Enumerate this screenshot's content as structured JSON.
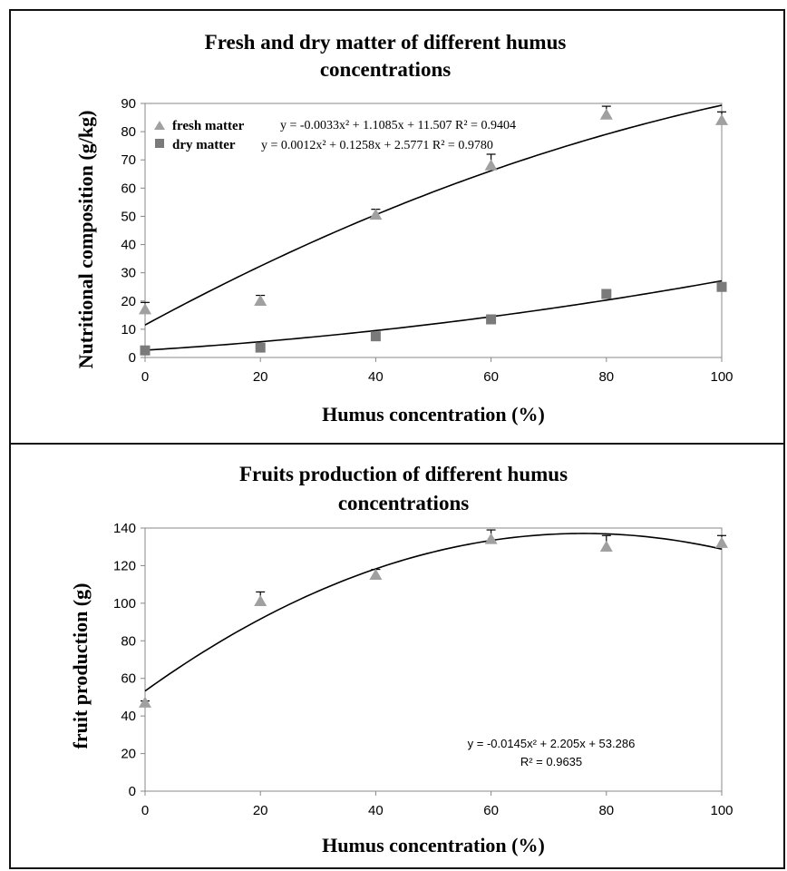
{
  "charts": [
    {
      "type": "scatter",
      "title_lines": [
        "Fresh and dry matter of different humus",
        "concentrations"
      ],
      "xlabel": "Humus concentration (%)",
      "ylabel": "Nutritional composition  (g/kg)",
      "xlim": [
        0,
        100
      ],
      "ylim": [
        0,
        90
      ],
      "xticks": [
        "0",
        "20",
        "40",
        "60",
        "80",
        "100"
      ],
      "yticks": [
        "0",
        "10",
        "20",
        "30",
        "40",
        "50",
        "60",
        "70",
        "80",
        "90"
      ],
      "grid": false,
      "legend_position": "top-left",
      "series": [
        {
          "name": "fresh matter",
          "marker": "triangle",
          "marker_color": "#a0a0a0",
          "x": [
            0,
            20,
            40,
            60,
            80,
            100
          ],
          "y": [
            17,
            20,
            50.5,
            68,
            86,
            84
          ],
          "error_upper": [
            2.5,
            2,
            2,
            4,
            3,
            3
          ],
          "equation": "y = -0.0033x² + 1.1085x + 11.507   R² = 0.9404",
          "fit": [
            -0.0033,
            1.1085,
            11.507
          ]
        },
        {
          "name": "dry matter",
          "marker": "square",
          "marker_color": "#7a7a7a",
          "x": [
            0,
            20,
            40,
            60,
            80,
            100
          ],
          "y": [
            2.5,
            3.5,
            7.5,
            13.5,
            22.5,
            25
          ],
          "error_upper": [
            0.5,
            0.5,
            0.5,
            0.5,
            1.5,
            0.5
          ],
          "equation": "y = 0.0012x² + 0.1258x + 2.5771   R² = 0.9780",
          "fit": [
            0.0012,
            0.1258,
            2.5771
          ]
        }
      ]
    },
    {
      "type": "scatter",
      "title_lines": [
        "Fruits production of different humus",
        "concentrations"
      ],
      "xlabel": "Humus concentration (%)",
      "ylabel": "fruit production (g)",
      "xlim": [
        0,
        100
      ],
      "ylim": [
        0,
        140
      ],
      "xticks": [
        "0",
        "20",
        "40",
        "60",
        "80",
        "100"
      ],
      "yticks": [
        "0",
        "20",
        "40",
        "60",
        "80",
        "100",
        "120",
        "140"
      ],
      "grid": false,
      "series": [
        {
          "marker": "triangle",
          "marker_color": "#a0a0a0",
          "x": [
            0,
            20,
            40,
            60,
            80,
            100
          ],
          "y": [
            47,
            101,
            115,
            134,
            130,
            132
          ],
          "error_upper": [
            1,
            5,
            3,
            5,
            6,
            4
          ],
          "fit": [
            -0.0145,
            2.205,
            53.286
          ]
        }
      ],
      "equation_lines": [
        "y = -0.0145x² + 2.205x + 53.286",
        "R² = 0.9635"
      ]
    }
  ]
}
